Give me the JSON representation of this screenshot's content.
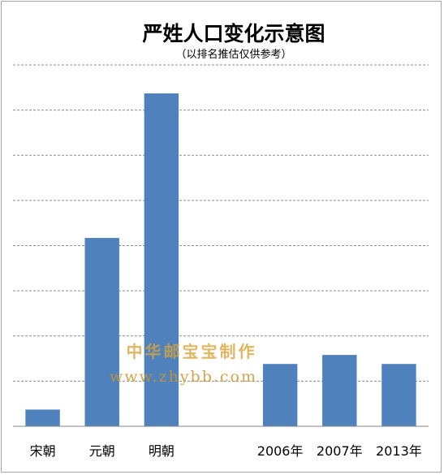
{
  "chart_data": {
    "type": "bar",
    "title": "严姓人口变化示意图",
    "subtitle": "（以排名推估仅供参考）",
    "categories": [
      "宋朝",
      "元朝",
      "明朝",
      "",
      "2006年",
      "2007年",
      "2013年"
    ],
    "values": [
      0.37,
      4.17,
      7.37,
      null,
      1.38,
      1.58,
      1.38
    ],
    "ylim": [
      0,
      8
    ],
    "grid": true,
    "gridline_style": "dashed",
    "legend": "none",
    "bar_color": "#4f81bd"
  },
  "watermark": {
    "line1": "中华邮宝宝制作",
    "line2": "www.zhybb.com"
  }
}
